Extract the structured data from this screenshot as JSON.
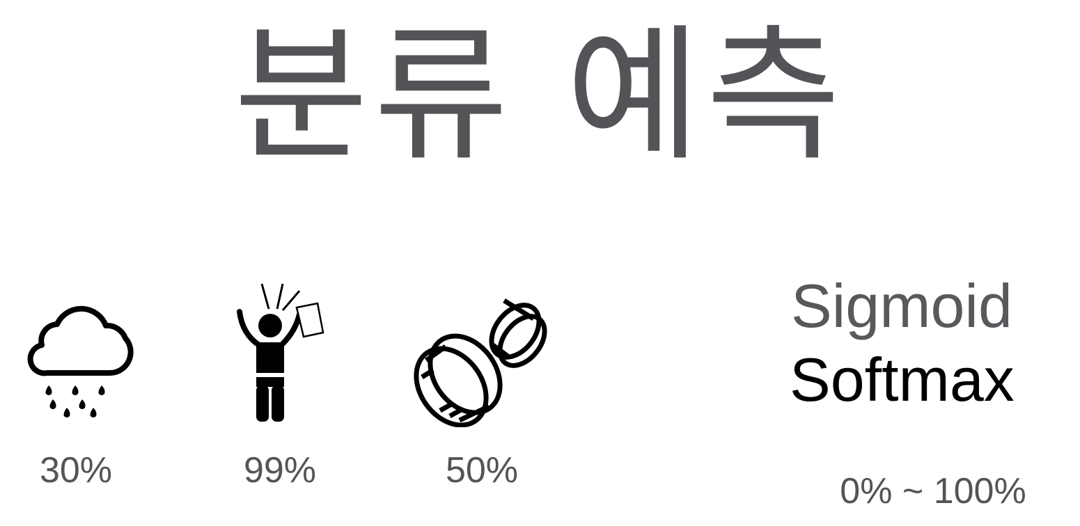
{
  "title": "분류 예측",
  "examples": [
    {
      "icon": "rain-cloud-icon",
      "probability": "30%"
    },
    {
      "icon": "person-holding-paper-icon",
      "probability": "99%"
    },
    {
      "icon": "coins-icon",
      "probability": "50%"
    }
  ],
  "functions": {
    "sigmoid": "Sigmoid",
    "softmax": "Softmax",
    "range": "0% ~ 100%"
  },
  "colors": {
    "text_gray": "#555357",
    "text_black": "#000000",
    "background": "#ffffff"
  }
}
